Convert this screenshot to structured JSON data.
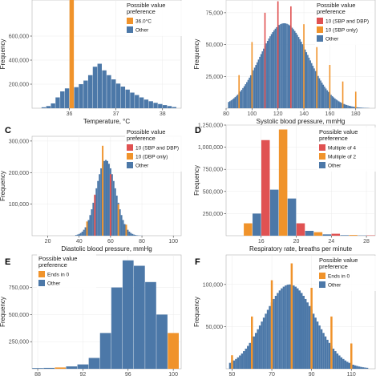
{
  "colors": {
    "other": "#4c78a8",
    "highlight_orange": "#f0932b",
    "highlight_red": "#e05252"
  },
  "chart_data": [
    {
      "panel_letter": "",
      "type": "bar",
      "xlabel": "Temperature, °C",
      "ylabel": "Frequency",
      "xlim": [
        35.2,
        38.4
      ],
      "ylim": [
        0,
        900000
      ],
      "xticks": [
        {
          "v": 36,
          "label": "36"
        },
        {
          "v": 37,
          "label": "37"
        },
        {
          "v": 38,
          "label": "38"
        }
      ],
      "yticks": [
        {
          "v": 200000,
          "label": "200,000"
        },
        {
          "v": 400000,
          "label": "400,000"
        },
        {
          "v": 600000,
          "label": "600,000"
        }
      ],
      "legend": {
        "title": "Possible value preference",
        "position": "top-right",
        "items": [
          {
            "label": "36.0°C",
            "color": "#f0932b"
          },
          {
            "label": "Other",
            "color": "#4c78a8"
          }
        ]
      },
      "series": [
        {
          "name": "Other",
          "color": "#4c78a8"
        },
        {
          "name": "36.0°C",
          "color": "#f0932b"
        }
      ],
      "bars": [
        [
          35.4,
          35.5,
          8000,
          0
        ],
        [
          35.5,
          35.6,
          18000,
          0
        ],
        [
          35.6,
          35.7,
          40000,
          0
        ],
        [
          35.7,
          35.8,
          90000,
          0
        ],
        [
          35.8,
          35.9,
          140000,
          0
        ],
        [
          35.9,
          36.0,
          165000,
          0
        ],
        [
          36.0,
          36.1,
          900000,
          1
        ],
        [
          36.1,
          36.2,
          175000,
          0
        ],
        [
          36.2,
          36.3,
          200000,
          0
        ],
        [
          36.3,
          36.4,
          230000,
          0
        ],
        [
          36.4,
          36.5,
          275000,
          0
        ],
        [
          36.5,
          36.6,
          345000,
          0
        ],
        [
          36.6,
          36.7,
          370000,
          0
        ],
        [
          36.7,
          36.8,
          315000,
          0
        ],
        [
          36.8,
          36.9,
          275000,
          0
        ],
        [
          36.9,
          37.0,
          240000,
          0
        ],
        [
          37.0,
          37.1,
          205000,
          0
        ],
        [
          37.1,
          37.2,
          180000,
          0
        ],
        [
          37.2,
          37.3,
          155000,
          0
        ],
        [
          37.3,
          37.4,
          130000,
          0
        ],
        [
          37.4,
          37.5,
          110000,
          0
        ],
        [
          37.5,
          37.6,
          90000,
          0
        ],
        [
          37.6,
          37.7,
          72000,
          0
        ],
        [
          37.7,
          37.8,
          58000,
          0
        ],
        [
          37.8,
          37.9,
          45000,
          0
        ],
        [
          37.9,
          38.0,
          35000,
          0
        ],
        [
          38.0,
          38.1,
          26000,
          0
        ],
        [
          38.1,
          38.2,
          18000,
          0
        ],
        [
          38.2,
          38.3,
          10000,
          0
        ]
      ]
    },
    {
      "panel_letter": "",
      "type": "histogram",
      "xlabel": "Systolic blood pressure, mmHg",
      "ylabel": "Frequency",
      "xlim": [
        80,
        195
      ],
      "ylim": [
        0,
        85000
      ],
      "xticks": [
        {
          "v": 80,
          "label": "80"
        },
        {
          "v": 100,
          "label": "100"
        },
        {
          "v": 120,
          "label": "120"
        },
        {
          "v": 140,
          "label": "140"
        },
        {
          "v": 160,
          "label": "160"
        },
        {
          "v": 180,
          "label": "180"
        }
      ],
      "yticks": [
        {
          "v": 25000,
          "label": "25,000"
        },
        {
          "v": 50000,
          "label": "50,000"
        },
        {
          "v": 75000,
          "label": "75,000"
        }
      ],
      "legend": {
        "title": "Possible value preference",
        "position": "top-right",
        "items": [
          {
            "label": "10 (SBP and DBP)",
            "color": "#e05252"
          },
          {
            "label": "10 (SBP only)",
            "color": "#f0932b"
          },
          {
            "label": "Other",
            "color": "#4c78a8"
          }
        ]
      },
      "series": [
        {
          "name": "Other",
          "color": "#4c78a8"
        },
        {
          "name": "10 (SBP and DBP)",
          "color": "#e05252"
        },
        {
          "name": "10 (SBP only)",
          "color": "#f0932b"
        }
      ],
      "dist": {
        "mu": 122,
        "sigma": 19,
        "skew": 0.008,
        "peak": 66000,
        "from": 82,
        "to": 190,
        "step": 1
      },
      "spikes": [
        {
          "x": 90,
          "y": 26000,
          "cat": 2
        },
        {
          "x": 100,
          "y": 52000,
          "cat": 2
        },
        {
          "x": 110,
          "y": 75000,
          "cat": 1
        },
        {
          "x": 120,
          "y": 84000,
          "cat": 1
        },
        {
          "x": 130,
          "y": 80000,
          "cat": 1
        },
        {
          "x": 140,
          "y": 66000,
          "cat": 2
        },
        {
          "x": 150,
          "y": 48000,
          "cat": 2
        },
        {
          "x": 160,
          "y": 34000,
          "cat": 2
        },
        {
          "x": 170,
          "y": 21000,
          "cat": 2
        },
        {
          "x": 180,
          "y": 13000,
          "cat": 2
        }
      ]
    },
    {
      "panel_letter": "C",
      "type": "histogram",
      "xlabel": "Diastolic blood pressure, mmHg",
      "ylabel": "Frequency",
      "xlim": [
        10,
        105
      ],
      "ylim": [
        0,
        315000
      ],
      "xticks": [
        {
          "v": 20,
          "label": "20"
        },
        {
          "v": 40,
          "label": "40"
        },
        {
          "v": 60,
          "label": "60"
        },
        {
          "v": 80,
          "label": "80"
        },
        {
          "v": 100,
          "label": "100"
        }
      ],
      "yticks": [
        {
          "v": 100000,
          "label": "100,000"
        },
        {
          "v": 200000,
          "label": "200,000"
        },
        {
          "v": 300000,
          "label": "300,000"
        }
      ],
      "legend": {
        "title": "Possible value preference",
        "position": "top-right",
        "items": [
          {
            "label": "10 (SBP and DBP)",
            "color": "#e05252"
          },
          {
            "label": "10 (DBP only)",
            "color": "#f0932b"
          },
          {
            "label": "Other",
            "color": "#4c78a8"
          }
        ]
      },
      "series": [
        {
          "name": "Other",
          "color": "#4c78a8"
        },
        {
          "name": "10 (SBP and DBP)",
          "color": "#e05252"
        },
        {
          "name": "10 (DBP only)",
          "color": "#f0932b"
        }
      ],
      "dist": {
        "mu": 57,
        "sigma": 6.2,
        "skew": 0,
        "peak": 240000,
        "from": 38,
        "to": 80,
        "step": 1
      },
      "spikes": [
        {
          "x": 50,
          "y": 130000,
          "cat": 1
        },
        {
          "x": 60,
          "y": 195000,
          "cat": 1
        },
        {
          "x": 55,
          "y": 285000,
          "cat": 2
        },
        {
          "x": 65,
          "y": 100000,
          "cat": 2
        },
        {
          "x": 45,
          "y": 45000,
          "cat": 2
        },
        {
          "x": 70,
          "y": 35000,
          "cat": 2
        }
      ]
    },
    {
      "panel_letter": "D",
      "type": "bar",
      "xlabel": "Respiratory rate, breaths per minute",
      "ylabel": "Frequency",
      "xlim": [
        12,
        29
      ],
      "ylim": [
        0,
        1250000
      ],
      "xticks": [
        {
          "v": 16,
          "label": "16"
        },
        {
          "v": 20,
          "label": "20"
        },
        {
          "v": 24,
          "label": "24"
        },
        {
          "v": 28,
          "label": "28"
        }
      ],
      "yticks": [
        {
          "v": 250000,
          "label": "250,000"
        },
        {
          "v": 500000,
          "label": "500,000"
        },
        {
          "v": 750000,
          "label": "750,000"
        },
        {
          "v": 1000000,
          "label": "1,000,000"
        },
        {
          "v": 1250000,
          "label": "1,250,000"
        }
      ],
      "legend": {
        "title": "Possible value preference",
        "position": "top-right",
        "items": [
          {
            "label": "Multiple of 4",
            "color": "#e05252"
          },
          {
            "label": "Multiple of 2",
            "color": "#f0932b"
          },
          {
            "label": "Other",
            "color": "#4c78a8"
          }
        ]
      },
      "series": [
        {
          "name": "Other",
          "color": "#4c78a8"
        },
        {
          "name": "Multiple of 4",
          "color": "#e05252"
        },
        {
          "name": "Multiple of 2",
          "color": "#f0932b"
        }
      ],
      "bars": [
        [
          13,
          14,
          0,
          0
        ],
        [
          14,
          15,
          140000,
          2
        ],
        [
          15,
          16,
          250000,
          0
        ],
        [
          16,
          17,
          1080000,
          1
        ],
        [
          17,
          18,
          520000,
          0
        ],
        [
          18,
          19,
          1200000,
          2
        ],
        [
          19,
          20,
          420000,
          0
        ],
        [
          20,
          21,
          140000,
          1
        ],
        [
          21,
          22,
          55000,
          0
        ],
        [
          22,
          23,
          40000,
          2
        ],
        [
          23,
          24,
          15000,
          0
        ],
        [
          24,
          25,
          22000,
          1
        ],
        [
          25,
          26,
          6000,
          0
        ],
        [
          26,
          27,
          8000,
          2
        ],
        [
          27,
          28,
          3000,
          0
        ],
        [
          28,
          29,
          4000,
          1
        ]
      ]
    },
    {
      "panel_letter": "E",
      "type": "bar",
      "xlabel": "",
      "ylabel": "Frequency",
      "xlim": [
        87.5,
        100.7
      ],
      "ylim": [
        0,
        1050000
      ],
      "xticks": [
        {
          "v": 88,
          "label": "88"
        },
        {
          "v": 92,
          "label": "92"
        },
        {
          "v": 96,
          "label": "96"
        },
        {
          "v": 100,
          "label": "100"
        }
      ],
      "yticks": [
        {
          "v": 250000,
          "label": "250,000"
        },
        {
          "v": 500000,
          "label": "500,000"
        },
        {
          "v": 750000,
          "label": "750,000"
        }
      ],
      "legend": {
        "title": "Possible value preference",
        "position": "top-left",
        "items": [
          {
            "label": "Ends in 0",
            "color": "#f0932b"
          },
          {
            "label": "Other",
            "color": "#4c78a8"
          }
        ]
      },
      "series": [
        {
          "name": "Other",
          "color": "#4c78a8"
        },
        {
          "name": "Ends in 0",
          "color": "#f0932b"
        }
      ],
      "bars": [
        [
          87.5,
          88.5,
          6000,
          0
        ],
        [
          88.5,
          89.5,
          8000,
          0
        ],
        [
          89.5,
          90.5,
          12000,
          1
        ],
        [
          90.5,
          91.5,
          22000,
          0
        ],
        [
          91.5,
          92.5,
          40000,
          0
        ],
        [
          92.5,
          93.5,
          100000,
          0
        ],
        [
          93.5,
          94.5,
          330000,
          0
        ],
        [
          94.5,
          95.5,
          750000,
          0
        ],
        [
          95.5,
          96.5,
          1000000,
          0
        ],
        [
          96.5,
          97.5,
          950000,
          0
        ],
        [
          97.5,
          98.5,
          800000,
          0
        ],
        [
          98.5,
          99.5,
          500000,
          0
        ],
        [
          99.5,
          100.5,
          330000,
          1
        ]
      ]
    },
    {
      "panel_letter": "F",
      "type": "histogram",
      "xlabel": "",
      "ylabel": "Frequency",
      "xlim": [
        47,
        122
      ],
      "ylim": [
        0,
        135000
      ],
      "xticks": [
        {
          "v": 50,
          "label": "50"
        },
        {
          "v": 70,
          "label": "70"
        },
        {
          "v": 90,
          "label": "90"
        },
        {
          "v": 110,
          "label": "110"
        }
      ],
      "yticks": [
        {
          "v": 50000,
          "label": "50,000"
        },
        {
          "v": 100000,
          "label": "100,000"
        }
      ],
      "legend": {
        "title": "Possible value preference",
        "position": "top-right",
        "items": [
          {
            "label": "Ends in 0",
            "color": "#f0932b"
          },
          {
            "label": "Other",
            "color": "#4c78a8"
          }
        ]
      },
      "series": [
        {
          "name": "Other",
          "color": "#4c78a8"
        },
        {
          "name": "Ends in 0",
          "color": "#f0932b"
        }
      ],
      "dist": {
        "mu": 79,
        "sigma": 13,
        "skew": 0,
        "peak": 100000,
        "from": 49,
        "to": 118,
        "step": 1
      },
      "spikes": [
        {
          "x": 50,
          "y": 16000,
          "cat": 1
        },
        {
          "x": 60,
          "y": 62000,
          "cat": 1
        },
        {
          "x": 70,
          "y": 105000,
          "cat": 1
        },
        {
          "x": 80,
          "y": 125000,
          "cat": 1
        },
        {
          "x": 90,
          "y": 96000,
          "cat": 1
        },
        {
          "x": 100,
          "y": 62000,
          "cat": 1
        },
        {
          "x": 110,
          "y": 30000,
          "cat": 1
        }
      ]
    }
  ]
}
